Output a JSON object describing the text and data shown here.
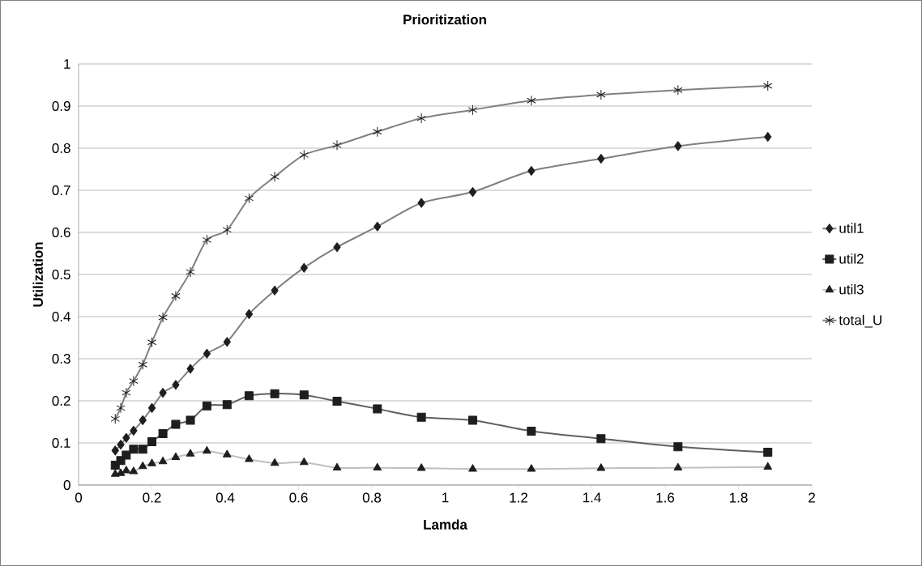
{
  "chart_data": {
    "type": "line",
    "title": "Prioritization",
    "xlabel": "Lamda",
    "ylabel": "Utilization",
    "x": [
      0.1,
      0.115,
      0.13,
      0.15,
      0.175,
      0.2,
      0.23,
      0.265,
      0.305,
      0.35,
      0.405,
      0.465,
      0.535,
      0.615,
      0.705,
      0.815,
      0.935,
      1.075,
      1.235,
      1.425,
      1.635,
      1.88
    ],
    "series": [
      {
        "name": "util1",
        "color": "#808080",
        "marker": "diamond",
        "values": [
          0.082,
          0.096,
          0.112,
          0.129,
          0.154,
          0.183,
          0.219,
          0.238,
          0.276,
          0.312,
          0.34,
          0.406,
          0.462,
          0.516,
          0.565,
          0.614,
          0.67,
          0.696,
          0.746,
          0.775,
          0.805,
          0.827
        ]
      },
      {
        "name": "util2",
        "color": "#606060",
        "marker": "square",
        "values": [
          0.047,
          0.058,
          0.071,
          0.085,
          0.085,
          0.103,
          0.122,
          0.144,
          0.154,
          0.188,
          0.191,
          0.212,
          0.217,
          0.214,
          0.199,
          0.181,
          0.161,
          0.154,
          0.128,
          0.11,
          0.091,
          0.078
        ]
      },
      {
        "name": "util3",
        "color": "#c0c0c0",
        "marker": "triangle",
        "values": [
          0.026,
          0.028,
          0.034,
          0.032,
          0.044,
          0.051,
          0.056,
          0.066,
          0.074,
          0.081,
          0.072,
          0.061,
          0.052,
          0.054,
          0.041,
          0.041,
          0.04,
          0.038,
          0.038,
          0.04,
          0.041,
          0.043
        ]
      },
      {
        "name": "total_U",
        "color": "#808080",
        "marker": "cross",
        "values": [
          0.157,
          0.183,
          0.219,
          0.247,
          0.286,
          0.339,
          0.398,
          0.449,
          0.506,
          0.582,
          0.606,
          0.681,
          0.732,
          0.784,
          0.807,
          0.839,
          0.871,
          0.891,
          0.913,
          0.927,
          0.938,
          0.948
        ]
      }
    ],
    "xlim": [
      0,
      2
    ],
    "xticks": [
      0,
      0.2,
      0.4,
      0.6,
      0.8,
      1,
      1.2,
      1.4,
      1.6,
      1.8,
      2
    ],
    "ylim": [
      0,
      1
    ],
    "yticks": [
      0,
      0.1,
      0.2,
      0.3,
      0.4,
      0.5,
      0.6,
      0.7,
      0.8,
      0.9,
      1
    ],
    "grid": "y",
    "legend": "right",
    "line_style": "solid"
  }
}
